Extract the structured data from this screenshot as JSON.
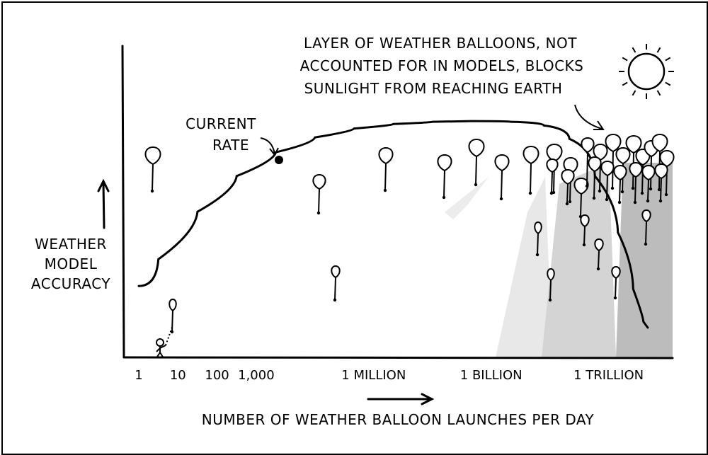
{
  "chart_data": {
    "type": "line",
    "title": "",
    "xlabel": "NUMBER OF WEATHER BALLOON LAUNCHES PER DAY",
    "ylabel": [
      "WEATHER",
      "MODEL",
      "ACCURACY"
    ],
    "x_scale": "log",
    "x_ticks": [
      {
        "value": 1,
        "label": "1"
      },
      {
        "value": 10,
        "label": "10"
      },
      {
        "value": 100,
        "label": "100"
      },
      {
        "value": 1000,
        "label": "1,000"
      },
      {
        "value": 1000000,
        "label": "1 MILLION"
      },
      {
        "value": 1000000000,
        "label": "1 BILLION"
      },
      {
        "value": 1000000000000,
        "label": "1 TRILLION"
      }
    ],
    "series": [
      {
        "x": [
          1,
          10,
          100,
          1000,
          10000,
          100000,
          1000000,
          10000000,
          100000000,
          1000000000,
          10000000000,
          50000000000,
          200000000000,
          1000000000000,
          3000000000000,
          6000000000000,
          10000000000000
        ],
        "y": [
          0.24,
          0.42,
          0.56,
          0.66,
          0.72,
          0.76,
          0.78,
          0.79,
          0.795,
          0.795,
          0.79,
          0.77,
          0.7,
          0.52,
          0.32,
          0.14,
          0.1
        ]
      }
    ],
    "annotations": [
      {
        "text": [
          "CURRENT",
          "RATE"
        ],
        "x": 2500,
        "y": 0.67
      },
      {
        "text": [
          "LAYER OF WEATHER BALLOONS, NOT",
          "ACCOUNTED FOR IN MODELS, BLOCKS",
          "SUNLIGHT FROM REACHING EARTH"
        ],
        "x": 100000000000,
        "y": 0.8
      }
    ]
  },
  "colors": {
    "ink": "#000000",
    "shade_light": "#e6e6e6",
    "shade_mid": "#cfcfcf",
    "shade_dark": "#b5b5b5"
  },
  "icons": [
    "sun-icon",
    "balloon-icon",
    "stick-figure-icon"
  ]
}
